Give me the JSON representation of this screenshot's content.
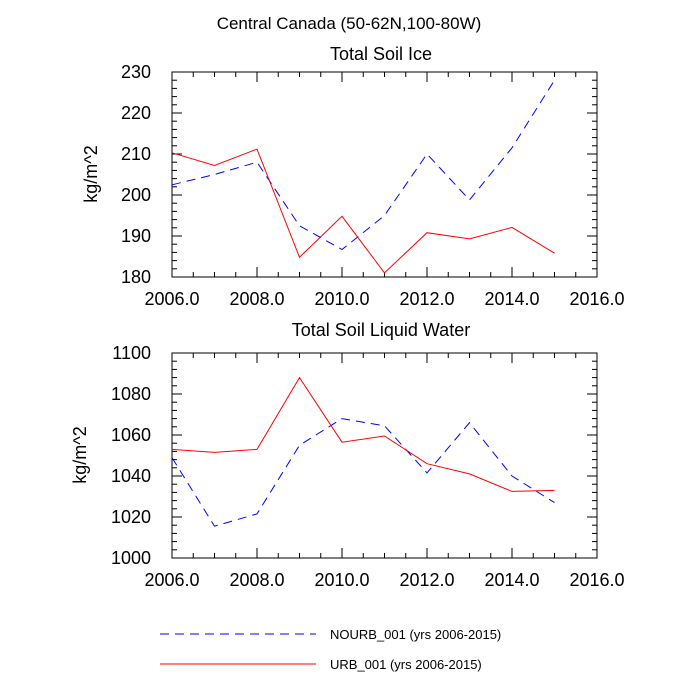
{
  "figure_title": "Central Canada (50-62N,100-80W)",
  "colors": {
    "nourb": "#0000ff",
    "urb": "#ff0000",
    "axis": "#000000"
  },
  "legend": [
    {
      "label": "NOURB_001 (yrs 2006-2015)",
      "style": "dashed",
      "color": "#0000ff"
    },
    {
      "label": "URB_001 (yrs 2006-2015)",
      "style": "solid",
      "color": "#ff0000"
    }
  ],
  "chart_data": [
    {
      "type": "line",
      "title": "Total Soil Ice",
      "xlabel": "",
      "ylabel": "kg/m^2",
      "xlim": [
        2006,
        2016
      ],
      "ylim": [
        180,
        230
      ],
      "x_ticks": [
        2006,
        2008,
        2010,
        2012,
        2014,
        2016
      ],
      "x_tick_labels": [
        "2006.0",
        "2008.0",
        "2010.0",
        "2012.0",
        "2014.0",
        "2016.0"
      ],
      "y_ticks": [
        180,
        190,
        200,
        210,
        220,
        230
      ],
      "y_tick_labels": [
        "180",
        "190",
        "200",
        "210",
        "220",
        "230"
      ],
      "x": [
        2006,
        2007,
        2008,
        2009,
        2010,
        2011,
        2012,
        2013,
        2014,
        2015
      ],
      "series": [
        {
          "name": "NOURB_001 (yrs 2006-2015)",
          "style": "dashed",
          "color": "#0000ff",
          "values": [
            202.5,
            205.0,
            208.0,
            192.5,
            186.7,
            195.0,
            210.0,
            198.8,
            211.5,
            228.0
          ]
        },
        {
          "name": "URB_001 (yrs 2006-2015)",
          "style": "solid",
          "color": "#ff0000",
          "values": [
            210.3,
            207.2,
            211.2,
            184.8,
            194.8,
            181.0,
            190.8,
            189.3,
            192.1,
            185.8
          ]
        }
      ]
    },
    {
      "type": "line",
      "title": "Total Soil Liquid Water",
      "xlabel": "",
      "ylabel": "kg/m^2",
      "xlim": [
        2006,
        2016
      ],
      "ylim": [
        1000,
        1100
      ],
      "x_ticks": [
        2006,
        2008,
        2010,
        2012,
        2014,
        2016
      ],
      "x_tick_labels": [
        "2006.0",
        "2008.0",
        "2010.0",
        "2012.0",
        "2014.0",
        "2016.0"
      ],
      "y_ticks": [
        1000,
        1020,
        1040,
        1060,
        1080,
        1100
      ],
      "y_tick_labels": [
        "1000",
        "1020",
        "1040",
        "1060",
        "1080",
        "1100"
      ],
      "x": [
        2006,
        2007,
        2008,
        2009,
        2010,
        2011,
        2012,
        2013,
        2014,
        2015
      ],
      "series": [
        {
          "name": "NOURB_001 (yrs 2006-2015)",
          "style": "dashed",
          "color": "#0000ff",
          "values": [
            1049.0,
            1015.5,
            1021.5,
            1055.0,
            1068.0,
            1064.5,
            1041.5,
            1066.0,
            1040.0,
            1027.0
          ]
        },
        {
          "name": "URB_001 (yrs 2006-2015)",
          "style": "solid",
          "color": "#ff0000",
          "values": [
            1053.0,
            1051.5,
            1053.0,
            1088.0,
            1056.5,
            1059.5,
            1046.0,
            1041.0,
            1032.5,
            1033.0
          ]
        }
      ]
    }
  ]
}
